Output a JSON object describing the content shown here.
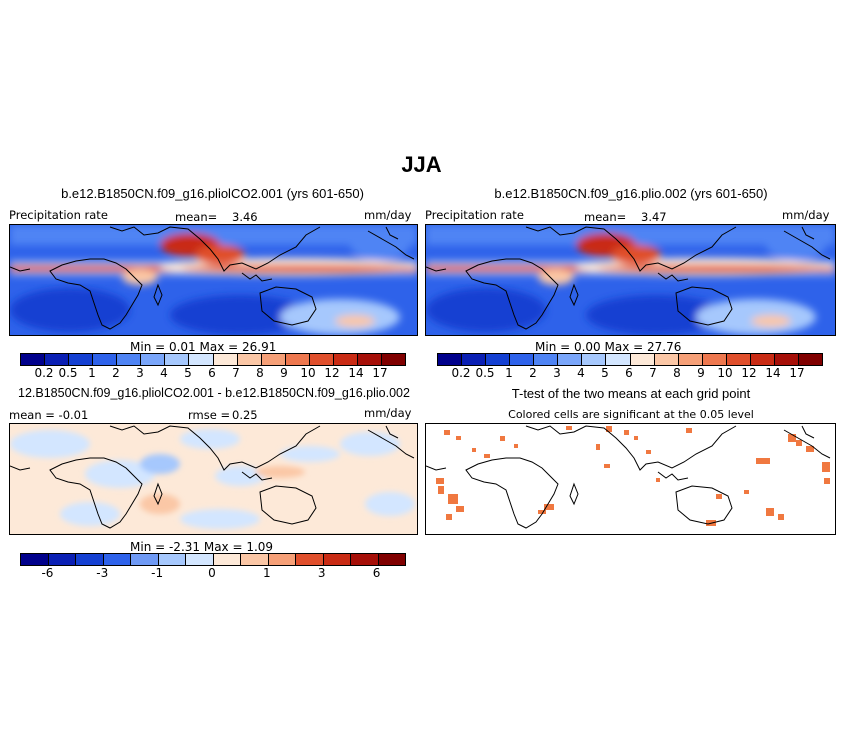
{
  "figure_title": "JJA",
  "panel1": {
    "title": "b.e12.B1850CN.f09_g16.pliolCO2.001 (yrs 601-650)",
    "left_label": "Precipitation rate",
    "mean_text": "mean=",
    "mean_value": "3.46",
    "units": "mm/day",
    "min_max": "Min =    0.01  Max =   26.91"
  },
  "panel2": {
    "title": "b.e12.B1850CN.f09_g16.plio.002 (yrs 601-650)",
    "left_label": "Precipitation rate",
    "mean_text": "mean=",
    "mean_value": "3.47",
    "units": "mm/day",
    "min_max": "Min =    0.00  Max =   27.76"
  },
  "panel3": {
    "title": "12.B1850CN.f09_g16.pliolCO2.001 - b.e12.B1850CN.f09_g16.plio.002",
    "mean_text": "mean =  -0.01",
    "rmse_text": "rmse =",
    "rmse_value": "0.25",
    "units": "mm/day",
    "min_max": "Min =  -2.31  Max =    1.09"
  },
  "panel4": {
    "title": "T-test of the two means at each grid point",
    "subtitle": "Colored cells are significant at the 0.05 level"
  },
  "colorbar_abs": {
    "colors": [
      "#00008b",
      "#0a1fb4",
      "#1440d2",
      "#2e62ea",
      "#4f84f4",
      "#7aa6fa",
      "#a6c8fd",
      "#d3e6ff",
      "#fde9d8",
      "#fbc7a6",
      "#f6a078",
      "#ee784f",
      "#e04f2c",
      "#c92b14",
      "#a60f08",
      "#800000"
    ],
    "labels": [
      "0.2",
      "0.5",
      "1",
      "2",
      "3",
      "4",
      "5",
      "6",
      "7",
      "8",
      "9",
      "10",
      "12",
      "14",
      "17"
    ]
  },
  "colorbar_diff": {
    "colors": [
      "#00008b",
      "#0a1fb4",
      "#1440d2",
      "#2e62ea",
      "#6f9af5",
      "#a6c8fd",
      "#d3e6ff",
      "#fde9d8",
      "#fbc7a6",
      "#f6a078",
      "#e04f2c",
      "#c92b14",
      "#a60f08",
      "#800000"
    ],
    "labels": [
      "-6",
      "-3",
      "-1",
      "0",
      "1",
      "3",
      "6"
    ]
  },
  "colors": {
    "significant": "#f07840",
    "land_outline": "#000000"
  }
}
